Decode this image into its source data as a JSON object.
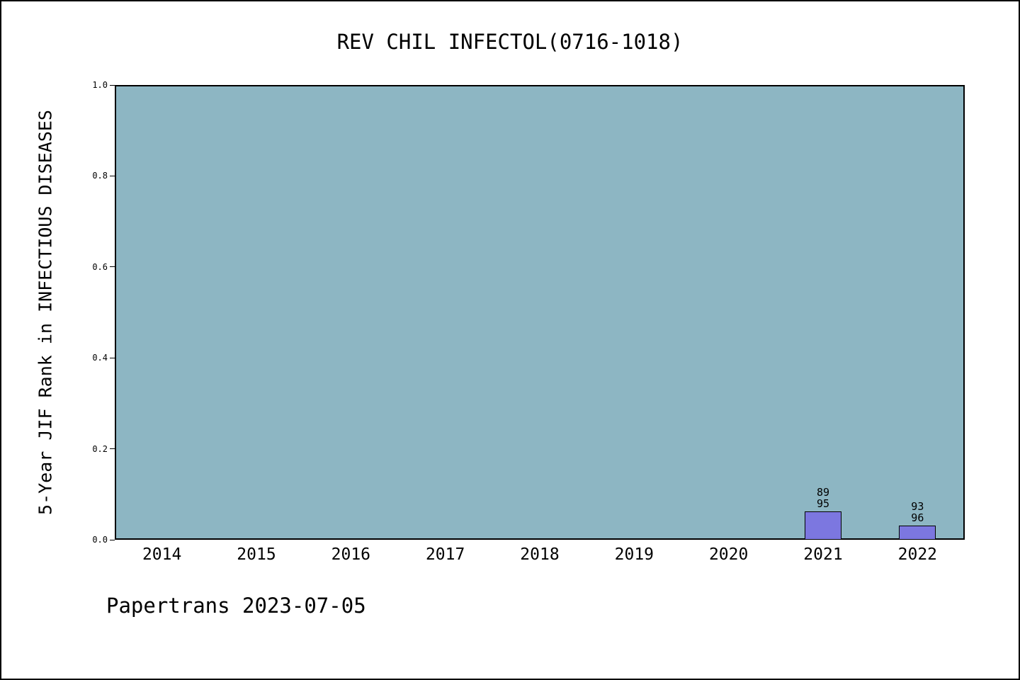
{
  "footer": "Papertrans 2023-07-05",
  "chart_data": {
    "type": "bar",
    "title": "REV CHIL INFECTOL(0716-1018)",
    "xlabel": "",
    "ylabel": "5-Year JIF Rank in INFECTIOUS DISEASES",
    "ylim": [
      0,
      1.0
    ],
    "yticks": [
      0.0,
      0.2,
      0.4,
      0.6,
      0.8,
      1.0
    ],
    "grid": false,
    "legend": "none",
    "categories": [
      "2014",
      "2015",
      "2016",
      "2017",
      "2018",
      "2019",
      "2020",
      "2021",
      "2022"
    ],
    "values": [
      null,
      null,
      null,
      null,
      null,
      null,
      null,
      0.063,
      0.031
    ],
    "bar_labels": [
      null,
      null,
      null,
      null,
      null,
      null,
      null,
      [
        "89",
        "95"
      ],
      [
        "93",
        "96"
      ]
    ],
    "colors": {
      "plot_bg": "#8db6c3",
      "bar_fill": "#7c77e0",
      "bar_edge": "#000000",
      "text": "#000000"
    }
  }
}
